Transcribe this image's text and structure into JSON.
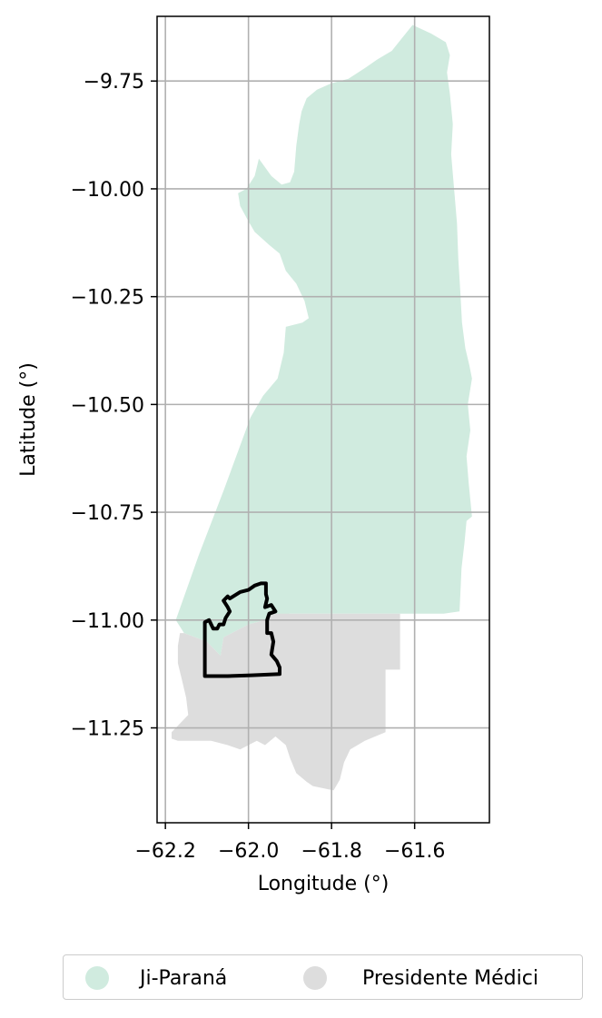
{
  "chart_data": {
    "type": "map",
    "xlabel": "Longitude (°)",
    "ylabel": "Latitude (°)",
    "xlim": [
      -62.22,
      -61.42
    ],
    "ylim": [
      -11.47,
      -9.6
    ],
    "x_ticks": [
      -62.2,
      -62.0,
      -61.8,
      -61.6
    ],
    "x_tick_labels": [
      "−62.2",
      "−62.0",
      "−61.8",
      "−61.6"
    ],
    "y_ticks": [
      -9.75,
      -10.0,
      -10.25,
      -10.5,
      -10.75,
      -11.0,
      -11.25
    ],
    "y_tick_labels": [
      "−9.75",
      "−10.00",
      "−10.25",
      "−10.50",
      "−10.75",
      "−11.00",
      "−11.25"
    ],
    "grid": true,
    "legend_position": "bottom-center",
    "regions": [
      {
        "name": "Ji-Paraná",
        "color": "#d0ebdf",
        "boundary": [
          [
            -61.605,
            -9.62
          ],
          [
            -61.56,
            -9.64
          ],
          [
            -61.525,
            -9.66
          ],
          [
            -61.515,
            -9.69
          ],
          [
            -61.522,
            -9.73
          ],
          [
            -61.515,
            -9.78
          ],
          [
            -61.508,
            -9.85
          ],
          [
            -61.512,
            -9.92
          ],
          [
            -61.505,
            -10.0
          ],
          [
            -61.498,
            -10.08
          ],
          [
            -61.495,
            -10.16
          ],
          [
            -61.49,
            -10.24
          ],
          [
            -61.486,
            -10.31
          ],
          [
            -61.478,
            -10.37
          ],
          [
            -61.468,
            -10.41
          ],
          [
            -61.462,
            -10.44
          ],
          [
            -61.472,
            -10.5
          ],
          [
            -61.466,
            -10.56
          ],
          [
            -61.475,
            -10.62
          ],
          [
            -61.47,
            -10.68
          ],
          [
            -61.465,
            -10.73
          ],
          [
            -61.462,
            -10.76
          ],
          [
            -61.475,
            -10.77
          ],
          [
            -61.48,
            -10.82
          ],
          [
            -61.487,
            -10.88
          ],
          [
            -61.49,
            -10.94
          ],
          [
            -61.492,
            -10.98
          ],
          [
            -61.53,
            -10.985
          ],
          [
            -61.6,
            -10.985
          ],
          [
            -61.7,
            -10.985
          ],
          [
            -61.8,
            -10.985
          ],
          [
            -61.9,
            -10.985
          ],
          [
            -61.935,
            -10.99
          ],
          [
            -61.96,
            -11.0
          ],
          [
            -62.0,
            -11.01
          ],
          [
            -62.06,
            -11.04
          ],
          [
            -62.07,
            -11.1
          ],
          [
            -62.06,
            -11.16
          ],
          [
            -62.045,
            -11.21
          ],
          [
            -62.033,
            -11.16
          ],
          [
            -62.05,
            -11.1
          ],
          [
            -62.1,
            -11.05
          ],
          [
            -62.155,
            -11.03
          ],
          [
            -62.175,
            -11.0
          ],
          [
            -62.12,
            -10.85
          ],
          [
            -62.06,
            -10.7
          ],
          [
            -61.995,
            -10.53
          ],
          [
            -61.965,
            -10.48
          ],
          [
            -61.93,
            -10.44
          ],
          [
            -61.915,
            -10.38
          ],
          [
            -61.91,
            -10.32
          ],
          [
            -61.87,
            -10.31
          ],
          [
            -61.855,
            -10.3
          ],
          [
            -61.865,
            -10.26
          ],
          [
            -61.885,
            -10.22
          ],
          [
            -61.91,
            -10.19
          ],
          [
            -61.925,
            -10.15
          ],
          [
            -61.95,
            -10.13
          ],
          [
            -61.985,
            -10.1
          ],
          [
            -62.0,
            -10.075
          ],
          [
            -62.02,
            -10.04
          ],
          [
            -62.025,
            -10.01
          ],
          [
            -62.005,
            -10.0
          ],
          [
            -61.985,
            -9.97
          ],
          [
            -61.975,
            -9.93
          ],
          [
            -61.945,
            -9.97
          ],
          [
            -61.92,
            -9.99
          ],
          [
            -61.9,
            -9.985
          ],
          [
            -61.89,
            -9.96
          ],
          [
            -61.885,
            -9.9
          ],
          [
            -61.878,
            -9.85
          ],
          [
            -61.872,
            -9.82
          ],
          [
            -61.86,
            -9.79
          ],
          [
            -61.835,
            -9.77
          ],
          [
            -61.8,
            -9.755
          ],
          [
            -61.76,
            -9.745
          ],
          [
            -61.72,
            -9.72
          ],
          [
            -61.69,
            -9.7
          ],
          [
            -61.655,
            -9.68
          ],
          [
            -61.63,
            -9.65
          ],
          [
            -61.605,
            -9.62
          ]
        ]
      },
      {
        "name": "Presidente Médici",
        "color": "#dddddd",
        "boundary": [
          [
            -61.94,
            -10.985
          ],
          [
            -61.8,
            -10.985
          ],
          [
            -61.7,
            -10.985
          ],
          [
            -61.635,
            -10.985
          ],
          [
            -61.635,
            -11.115
          ],
          [
            -61.67,
            -11.115
          ],
          [
            -61.67,
            -11.26
          ],
          [
            -61.72,
            -11.28
          ],
          [
            -61.755,
            -11.3
          ],
          [
            -61.77,
            -11.33
          ],
          [
            -61.78,
            -11.37
          ],
          [
            -61.795,
            -11.395
          ],
          [
            -61.82,
            -11.39
          ],
          [
            -61.845,
            -11.385
          ],
          [
            -61.86,
            -11.375
          ],
          [
            -61.885,
            -11.355
          ],
          [
            -61.9,
            -11.32
          ],
          [
            -61.91,
            -11.29
          ],
          [
            -61.935,
            -11.27
          ],
          [
            -61.96,
            -11.29
          ],
          [
            -61.98,
            -11.28
          ],
          [
            -62.02,
            -11.3
          ],
          [
            -62.05,
            -11.29
          ],
          [
            -62.09,
            -11.28
          ],
          [
            -62.13,
            -11.28
          ],
          [
            -62.17,
            -11.28
          ],
          [
            -62.185,
            -11.275
          ],
          [
            -62.185,
            -11.26
          ],
          [
            -62.165,
            -11.24
          ],
          [
            -62.145,
            -11.22
          ],
          [
            -62.15,
            -11.18
          ],
          [
            -62.16,
            -11.14
          ],
          [
            -62.17,
            -11.1
          ],
          [
            -62.17,
            -11.06
          ],
          [
            -62.165,
            -11.03
          ],
          [
            -62.155,
            -11.03
          ],
          [
            -62.1,
            -11.05
          ],
          [
            -62.05,
            -11.1
          ],
          [
            -62.033,
            -11.16
          ],
          [
            -62.045,
            -11.21
          ],
          [
            -62.06,
            -11.16
          ],
          [
            -62.07,
            -11.1
          ],
          [
            -62.06,
            -11.04
          ],
          [
            -62.0,
            -11.01
          ],
          [
            -61.96,
            -11.0
          ],
          [
            -61.94,
            -10.985
          ]
        ]
      }
    ],
    "outline": {
      "color": "#000000",
      "boundary": [
        [
          -61.97,
          -10.915
        ],
        [
          -61.985,
          -10.92
        ],
        [
          -62.0,
          -10.93
        ],
        [
          -62.02,
          -10.935
        ],
        [
          -62.045,
          -10.95
        ],
        [
          -62.05,
          -10.945
        ],
        [
          -62.06,
          -10.955
        ],
        [
          -62.05,
          -10.97
        ],
        [
          -62.045,
          -10.98
        ],
        [
          -62.055,
          -10.995
        ],
        [
          -62.06,
          -11.01
        ],
        [
          -62.07,
          -11.01
        ],
        [
          -62.075,
          -11.02
        ],
        [
          -62.085,
          -11.02
        ],
        [
          -62.095,
          -11.0
        ],
        [
          -62.105,
          -11.005
        ],
        [
          -62.105,
          -11.13
        ],
        [
          -62.05,
          -11.13
        ],
        [
          -61.993,
          -11.128
        ],
        [
          -61.925,
          -11.125
        ],
        [
          -61.925,
          -11.11
        ],
        [
          -61.932,
          -11.095
        ],
        [
          -61.945,
          -11.08
        ],
        [
          -61.94,
          -11.05
        ],
        [
          -61.945,
          -11.03
        ],
        [
          -61.955,
          -11.03
        ],
        [
          -61.955,
          -11.0
        ],
        [
          -61.95,
          -10.985
        ],
        [
          -61.935,
          -10.98
        ],
        [
          -61.945,
          -10.965
        ],
        [
          -61.96,
          -10.97
        ],
        [
          -61.955,
          -10.95
        ],
        [
          -61.958,
          -10.94
        ],
        [
          -61.958,
          -10.915
        ],
        [
          -61.97,
          -10.915
        ]
      ]
    }
  },
  "legend": {
    "items": [
      {
        "label": "Ji-Paraná",
        "color": "#d0ebdf"
      },
      {
        "label": "Presidente Médici",
        "color": "#dddddd"
      }
    ]
  }
}
